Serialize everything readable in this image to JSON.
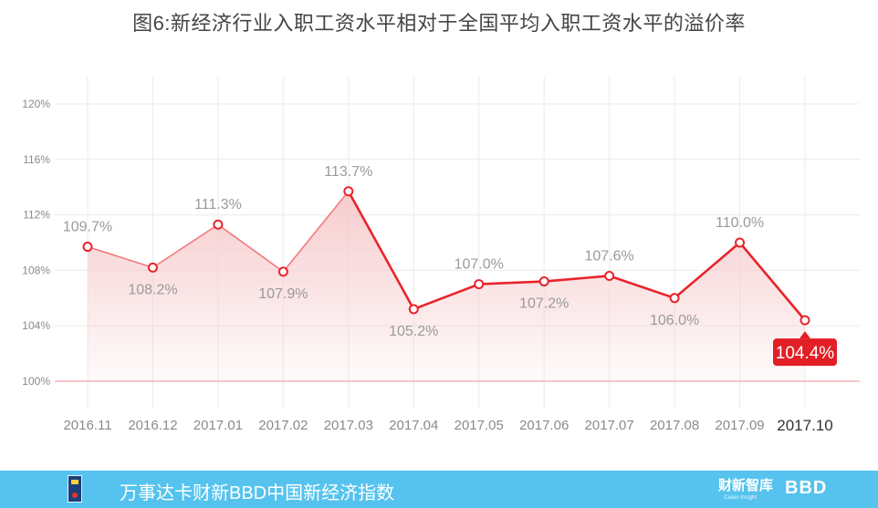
{
  "title": "图6:新经济行业入职工资水平相对于全国平均入职工资水平的溢价率",
  "chart_data": {
    "type": "area",
    "title": "图6:新经济行业入职工资水平相对于全国平均入职工资水平的溢价率",
    "xlabel": "",
    "ylabel": "",
    "categories": [
      "2016.11",
      "2016.12",
      "2017.01",
      "2017.02",
      "2017.03",
      "2017.04",
      "2017.05",
      "2017.06",
      "2017.07",
      "2017.08",
      "2017.09",
      "2017.10"
    ],
    "values": [
      109.7,
      108.2,
      111.3,
      107.9,
      113.7,
      105.2,
      107.0,
      107.2,
      107.6,
      106.0,
      110.0,
      104.4
    ],
    "data_labels": [
      "109.7%",
      "108.2%",
      "111.3%",
      "107.9%",
      "113.7%",
      "105.2%",
      "107.0%",
      "107.2%",
      "107.6%",
      "106.0%",
      "110.0%",
      "104.4%"
    ],
    "label_positions": [
      "above",
      "below",
      "above",
      "below",
      "above",
      "below",
      "above",
      "below",
      "above",
      "below",
      "above",
      "callout"
    ],
    "ylim": [
      100,
      120
    ],
    "yticks": [
      100,
      104,
      108,
      112,
      116,
      120
    ],
    "ytick_labels": [
      "100%",
      "104%",
      "108%",
      "112%",
      "116%",
      "120%"
    ],
    "grid": true,
    "highlight_category": "2017.10",
    "colors": {
      "line": "#e8242b",
      "line_light": "#f07a7e",
      "fill": "#f6c9cb",
      "baseline": "#f3a4a8",
      "grid": "#ebebeb",
      "tick_text": "#8a8a8a",
      "label_text": "#9a9a9a",
      "callout_bg": "#e21f26"
    }
  },
  "footer": {
    "text": "万事达卡财新BBD中国新经济指数",
    "brand1": "财新智库",
    "brand1_sub": "Caixin Insight",
    "brand2": "BBD",
    "logo_icon": "ne-logo-icon",
    "background": "#55c3ee"
  }
}
